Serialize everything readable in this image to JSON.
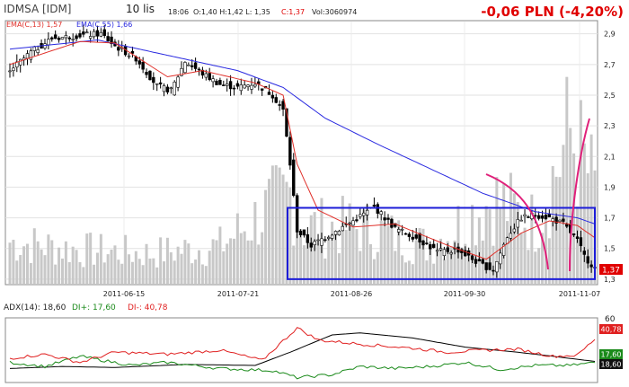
{
  "header": {
    "symbol": "IDMSA [IDM]",
    "interval": "10 lis",
    "time": "18:06",
    "ohlc": "O:1,40 H:1,42 L: 1,35",
    "close": "C:1,37",
    "volume": "Vol:3060974",
    "change": "-0,06 PLN (-4,20%)"
  },
  "legend": {
    "ema13": "EMA(C,13) 1,57",
    "ema55": "EMA(C,55) 1,66"
  },
  "colors": {
    "ema13": "#e0302a",
    "ema55": "#2a2ae0",
    "change": "#e00000",
    "rect": "#1c1cd8",
    "arc": "#e0207a",
    "adx": "#000000",
    "di_plus": "#1a8a1a",
    "di_minus": "#e02020",
    "volume": "#c8c8c8"
  },
  "chart_data": [
    {
      "type": "candlestick",
      "y_ticks": [
        "2,9",
        "2,7",
        "2,5",
        "2,3",
        "2,1",
        "1,9",
        "1,7",
        "1,5",
        "1,3"
      ],
      "ylim": [
        1.27,
        2.98
      ],
      "x_labels": [
        "2011-06-15",
        "2011-07-21",
        "2011-08-26",
        "2011-09-30",
        "2011-11-07"
      ],
      "last_price_label": "1,37",
      "last_price": 1.37,
      "price_path": [
        {
          "i": 0,
          "v": 2.66
        },
        {
          "i": 6,
          "v": 2.78
        },
        {
          "i": 12,
          "v": 2.87
        },
        {
          "i": 20,
          "v": 2.89
        },
        {
          "i": 26,
          "v": 2.9
        },
        {
          "i": 30,
          "v": 2.82
        },
        {
          "i": 36,
          "v": 2.74
        },
        {
          "i": 42,
          "v": 2.56
        },
        {
          "i": 46,
          "v": 2.53
        },
        {
          "i": 50,
          "v": 2.72
        },
        {
          "i": 55,
          "v": 2.64
        },
        {
          "i": 60,
          "v": 2.57
        },
        {
          "i": 65,
          "v": 2.55
        },
        {
          "i": 70,
          "v": 2.58
        },
        {
          "i": 75,
          "v": 2.5
        },
        {
          "i": 78,
          "v": 2.4
        },
        {
          "i": 80,
          "v": 2.05
        },
        {
          "i": 82,
          "v": 1.62
        },
        {
          "i": 86,
          "v": 1.52
        },
        {
          "i": 92,
          "v": 1.6
        },
        {
          "i": 98,
          "v": 1.68
        },
        {
          "i": 104,
          "v": 1.77
        },
        {
          "i": 110,
          "v": 1.63
        },
        {
          "i": 116,
          "v": 1.57
        },
        {
          "i": 122,
          "v": 1.48
        },
        {
          "i": 128,
          "v": 1.49
        },
        {
          "i": 134,
          "v": 1.4
        },
        {
          "i": 138,
          "v": 1.36
        },
        {
          "i": 142,
          "v": 1.58
        },
        {
          "i": 146,
          "v": 1.7
        },
        {
          "i": 150,
          "v": 1.72
        },
        {
          "i": 154,
          "v": 1.7
        },
        {
          "i": 158,
          "v": 1.66
        },
        {
          "i": 162,
          "v": 1.55
        },
        {
          "i": 164,
          "v": 1.45
        },
        {
          "i": 167,
          "v": 1.37
        }
      ],
      "volume_profile": [
        {
          "i": 0,
          "v": 0.22
        },
        {
          "i": 20,
          "v": 0.18
        },
        {
          "i": 40,
          "v": 0.16
        },
        {
          "i": 60,
          "v": 0.2
        },
        {
          "i": 80,
          "v": 0.48
        },
        {
          "i": 84,
          "v": 0.3
        },
        {
          "i": 100,
          "v": 0.3
        },
        {
          "i": 120,
          "v": 0.2
        },
        {
          "i": 138,
          "v": 0.45
        },
        {
          "i": 150,
          "v": 0.32
        },
        {
          "i": 160,
          "v": 0.8
        },
        {
          "i": 167,
          "v": 0.5
        }
      ],
      "ema13": [
        {
          "i": 0,
          "v": 2.7
        },
        {
          "i": 20,
          "v": 2.85
        },
        {
          "i": 30,
          "v": 2.84
        },
        {
          "i": 45,
          "v": 2.62
        },
        {
          "i": 55,
          "v": 2.66
        },
        {
          "i": 70,
          "v": 2.58
        },
        {
          "i": 78,
          "v": 2.5
        },
        {
          "i": 82,
          "v": 2.05
        },
        {
          "i": 88,
          "v": 1.75
        },
        {
          "i": 98,
          "v": 1.64
        },
        {
          "i": 110,
          "v": 1.66
        },
        {
          "i": 125,
          "v": 1.52
        },
        {
          "i": 136,
          "v": 1.43
        },
        {
          "i": 146,
          "v": 1.6
        },
        {
          "i": 154,
          "v": 1.68
        },
        {
          "i": 162,
          "v": 1.65
        },
        {
          "i": 167,
          "v": 1.57
        }
      ],
      "ema55": [
        {
          "i": 0,
          "v": 2.8
        },
        {
          "i": 25,
          "v": 2.86
        },
        {
          "i": 45,
          "v": 2.76
        },
        {
          "i": 65,
          "v": 2.66
        },
        {
          "i": 78,
          "v": 2.55
        },
        {
          "i": 90,
          "v": 2.35
        },
        {
          "i": 105,
          "v": 2.18
        },
        {
          "i": 120,
          "v": 2.02
        },
        {
          "i": 135,
          "v": 1.86
        },
        {
          "i": 150,
          "v": 1.74
        },
        {
          "i": 162,
          "v": 1.7
        },
        {
          "i": 167,
          "v": 1.66
        }
      ]
    },
    {
      "type": "line",
      "indicator": "ADX",
      "label": "ADX(14): 18,60",
      "di_plus_label": "DI+: 17,60",
      "di_minus_label": "DI-: 40,78",
      "y_tick": "60",
      "ylim": [
        0,
        60
      ],
      "last_values": {
        "adx": "18,60",
        "di_plus": "17,60",
        "di_minus": "40,78"
      },
      "series": [
        {
          "key": "adx",
          "points": [
            {
              "i": 0,
              "v": 12
            },
            {
              "i": 15,
              "v": 14
            },
            {
              "i": 30,
              "v": 13
            },
            {
              "i": 50,
              "v": 16
            },
            {
              "i": 70,
              "v": 15
            },
            {
              "i": 80,
              "v": 28
            },
            {
              "i": 92,
              "v": 45
            },
            {
              "i": 100,
              "v": 47
            },
            {
              "i": 115,
              "v": 42
            },
            {
              "i": 130,
              "v": 33
            },
            {
              "i": 145,
              "v": 28
            },
            {
              "i": 155,
              "v": 24
            },
            {
              "i": 167,
              "v": 19
            }
          ]
        },
        {
          "key": "di_plus",
          "points": [
            {
              "i": 0,
              "v": 18
            },
            {
              "i": 10,
              "v": 14
            },
            {
              "i": 20,
              "v": 24
            },
            {
              "i": 35,
              "v": 15
            },
            {
              "i": 45,
              "v": 18
            },
            {
              "i": 60,
              "v": 12
            },
            {
              "i": 75,
              "v": 10
            },
            {
              "i": 82,
              "v": 3
            },
            {
              "i": 92,
              "v": 6
            },
            {
              "i": 100,
              "v": 14
            },
            {
              "i": 110,
              "v": 12
            },
            {
              "i": 120,
              "v": 14
            },
            {
              "i": 130,
              "v": 18
            },
            {
              "i": 140,
              "v": 11
            },
            {
              "i": 150,
              "v": 15
            },
            {
              "i": 160,
              "v": 15
            },
            {
              "i": 167,
              "v": 18
            }
          ]
        },
        {
          "key": "di_minus",
          "points": [
            {
              "i": 0,
              "v": 22
            },
            {
              "i": 10,
              "v": 26
            },
            {
              "i": 20,
              "v": 18
            },
            {
              "i": 30,
              "v": 28
            },
            {
              "i": 45,
              "v": 26
            },
            {
              "i": 60,
              "v": 30
            },
            {
              "i": 72,
              "v": 20
            },
            {
              "i": 82,
              "v": 52
            },
            {
              "i": 88,
              "v": 40
            },
            {
              "i": 100,
              "v": 36
            },
            {
              "i": 115,
              "v": 32
            },
            {
              "i": 125,
              "v": 28
            },
            {
              "i": 135,
              "v": 30
            },
            {
              "i": 145,
              "v": 31
            },
            {
              "i": 155,
              "v": 24
            },
            {
              "i": 162,
              "v": 25
            },
            {
              "i": 167,
              "v": 41
            }
          ]
        }
      ]
    }
  ]
}
